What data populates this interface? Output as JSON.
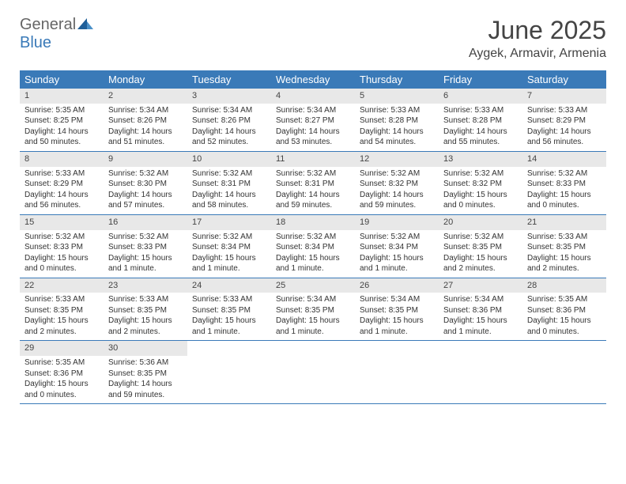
{
  "logo": {
    "general": "General",
    "blue": "Blue"
  },
  "title": "June 2025",
  "location": "Aygek, Armavir, Armenia",
  "colors": {
    "header_bg": "#3a7ab8",
    "daynum_bg": "#e8e8e8",
    "rule": "#3a7ab8",
    "text": "#333333"
  },
  "weekdays": [
    "Sunday",
    "Monday",
    "Tuesday",
    "Wednesday",
    "Thursday",
    "Friday",
    "Saturday"
  ],
  "weeks": [
    [
      {
        "num": "1",
        "sunrise": "Sunrise: 5:35 AM",
        "sunset": "Sunset: 8:25 PM",
        "daylight": "Daylight: 14 hours and 50 minutes."
      },
      {
        "num": "2",
        "sunrise": "Sunrise: 5:34 AM",
        "sunset": "Sunset: 8:26 PM",
        "daylight": "Daylight: 14 hours and 51 minutes."
      },
      {
        "num": "3",
        "sunrise": "Sunrise: 5:34 AM",
        "sunset": "Sunset: 8:26 PM",
        "daylight": "Daylight: 14 hours and 52 minutes."
      },
      {
        "num": "4",
        "sunrise": "Sunrise: 5:34 AM",
        "sunset": "Sunset: 8:27 PM",
        "daylight": "Daylight: 14 hours and 53 minutes."
      },
      {
        "num": "5",
        "sunrise": "Sunrise: 5:33 AM",
        "sunset": "Sunset: 8:28 PM",
        "daylight": "Daylight: 14 hours and 54 minutes."
      },
      {
        "num": "6",
        "sunrise": "Sunrise: 5:33 AM",
        "sunset": "Sunset: 8:28 PM",
        "daylight": "Daylight: 14 hours and 55 minutes."
      },
      {
        "num": "7",
        "sunrise": "Sunrise: 5:33 AM",
        "sunset": "Sunset: 8:29 PM",
        "daylight": "Daylight: 14 hours and 56 minutes."
      }
    ],
    [
      {
        "num": "8",
        "sunrise": "Sunrise: 5:33 AM",
        "sunset": "Sunset: 8:29 PM",
        "daylight": "Daylight: 14 hours and 56 minutes."
      },
      {
        "num": "9",
        "sunrise": "Sunrise: 5:32 AM",
        "sunset": "Sunset: 8:30 PM",
        "daylight": "Daylight: 14 hours and 57 minutes."
      },
      {
        "num": "10",
        "sunrise": "Sunrise: 5:32 AM",
        "sunset": "Sunset: 8:31 PM",
        "daylight": "Daylight: 14 hours and 58 minutes."
      },
      {
        "num": "11",
        "sunrise": "Sunrise: 5:32 AM",
        "sunset": "Sunset: 8:31 PM",
        "daylight": "Daylight: 14 hours and 59 minutes."
      },
      {
        "num": "12",
        "sunrise": "Sunrise: 5:32 AM",
        "sunset": "Sunset: 8:32 PM",
        "daylight": "Daylight: 14 hours and 59 minutes."
      },
      {
        "num": "13",
        "sunrise": "Sunrise: 5:32 AM",
        "sunset": "Sunset: 8:32 PM",
        "daylight": "Daylight: 15 hours and 0 minutes."
      },
      {
        "num": "14",
        "sunrise": "Sunrise: 5:32 AM",
        "sunset": "Sunset: 8:33 PM",
        "daylight": "Daylight: 15 hours and 0 minutes."
      }
    ],
    [
      {
        "num": "15",
        "sunrise": "Sunrise: 5:32 AM",
        "sunset": "Sunset: 8:33 PM",
        "daylight": "Daylight: 15 hours and 0 minutes."
      },
      {
        "num": "16",
        "sunrise": "Sunrise: 5:32 AM",
        "sunset": "Sunset: 8:33 PM",
        "daylight": "Daylight: 15 hours and 1 minute."
      },
      {
        "num": "17",
        "sunrise": "Sunrise: 5:32 AM",
        "sunset": "Sunset: 8:34 PM",
        "daylight": "Daylight: 15 hours and 1 minute."
      },
      {
        "num": "18",
        "sunrise": "Sunrise: 5:32 AM",
        "sunset": "Sunset: 8:34 PM",
        "daylight": "Daylight: 15 hours and 1 minute."
      },
      {
        "num": "19",
        "sunrise": "Sunrise: 5:32 AM",
        "sunset": "Sunset: 8:34 PM",
        "daylight": "Daylight: 15 hours and 1 minute."
      },
      {
        "num": "20",
        "sunrise": "Sunrise: 5:32 AM",
        "sunset": "Sunset: 8:35 PM",
        "daylight": "Daylight: 15 hours and 2 minutes."
      },
      {
        "num": "21",
        "sunrise": "Sunrise: 5:33 AM",
        "sunset": "Sunset: 8:35 PM",
        "daylight": "Daylight: 15 hours and 2 minutes."
      }
    ],
    [
      {
        "num": "22",
        "sunrise": "Sunrise: 5:33 AM",
        "sunset": "Sunset: 8:35 PM",
        "daylight": "Daylight: 15 hours and 2 minutes."
      },
      {
        "num": "23",
        "sunrise": "Sunrise: 5:33 AM",
        "sunset": "Sunset: 8:35 PM",
        "daylight": "Daylight: 15 hours and 2 minutes."
      },
      {
        "num": "24",
        "sunrise": "Sunrise: 5:33 AM",
        "sunset": "Sunset: 8:35 PM",
        "daylight": "Daylight: 15 hours and 1 minute."
      },
      {
        "num": "25",
        "sunrise": "Sunrise: 5:34 AM",
        "sunset": "Sunset: 8:35 PM",
        "daylight": "Daylight: 15 hours and 1 minute."
      },
      {
        "num": "26",
        "sunrise": "Sunrise: 5:34 AM",
        "sunset": "Sunset: 8:35 PM",
        "daylight": "Daylight: 15 hours and 1 minute."
      },
      {
        "num": "27",
        "sunrise": "Sunrise: 5:34 AM",
        "sunset": "Sunset: 8:36 PM",
        "daylight": "Daylight: 15 hours and 1 minute."
      },
      {
        "num": "28",
        "sunrise": "Sunrise: 5:35 AM",
        "sunset": "Sunset: 8:36 PM",
        "daylight": "Daylight: 15 hours and 0 minutes."
      }
    ],
    [
      {
        "num": "29",
        "sunrise": "Sunrise: 5:35 AM",
        "sunset": "Sunset: 8:36 PM",
        "daylight": "Daylight: 15 hours and 0 minutes."
      },
      {
        "num": "30",
        "sunrise": "Sunrise: 5:36 AM",
        "sunset": "Sunset: 8:35 PM",
        "daylight": "Daylight: 14 hours and 59 minutes."
      },
      null,
      null,
      null,
      null,
      null
    ]
  ]
}
